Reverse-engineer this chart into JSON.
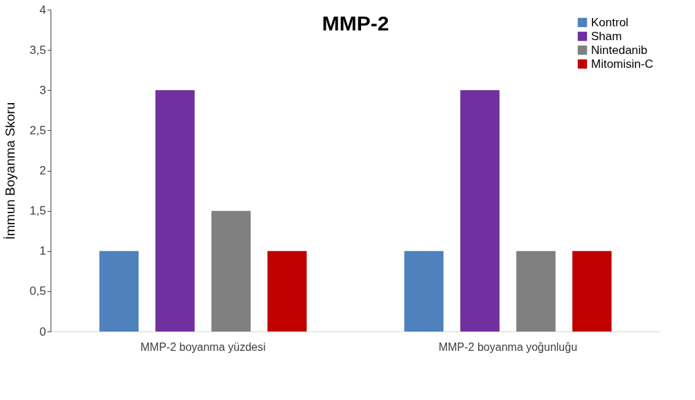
{
  "chart_data": {
    "type": "bar",
    "title": "MMP-2",
    "ylabel": "İmmun Boyanma Skoru",
    "categories": [
      "MMP-2 boyanma yüzdesi",
      "MMP-2 boyanma yoğunluğu"
    ],
    "series": [
      {
        "name": "Kontrol",
        "color": "#4f81bd",
        "values": [
          1,
          1
        ]
      },
      {
        "name": "Sham",
        "color": "#7030a0",
        "values": [
          3,
          3
        ]
      },
      {
        "name": "Nintedanib",
        "color": "#808080",
        "values": [
          1.5,
          1
        ]
      },
      {
        "name": "Mitomisin-C",
        "color": "#c00000",
        "values": [
          1,
          1
        ]
      }
    ],
    "ylim": [
      0,
      4
    ],
    "yticks": [
      0,
      {
        "value": 0.5,
        "label": "0,5"
      },
      1,
      {
        "value": 1.5,
        "label": "1,5"
      },
      2,
      {
        "value": 2.5,
        "label": "2,5"
      },
      3,
      {
        "value": 3.5,
        "label": "3,5"
      },
      4
    ],
    "grid": false,
    "legend": "top right"
  }
}
